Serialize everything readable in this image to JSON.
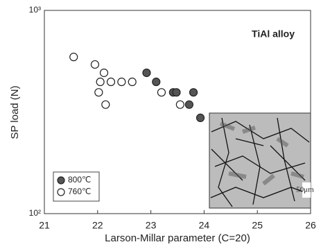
{
  "chart_data": {
    "type": "scatter",
    "xlabel": "Larson-Millar parameter (C=20)",
    "ylabel": "SP  load (N)",
    "annotations": [
      "TiAl alloy",
      "50μm"
    ],
    "xlim": [
      21,
      26
    ],
    "xticks": [
      21,
      22,
      23,
      24,
      25,
      26
    ],
    "ylim": [
      100,
      1000
    ],
    "yticks": [
      {
        "value": 100,
        "label": "10²"
      },
      {
        "value": 1000,
        "label": "10³"
      }
    ],
    "yscale": "log",
    "legend": "lower left",
    "series": [
      {
        "name": "800℃",
        "color": "#555555",
        "x": [
          22.92,
          23.1,
          23.42,
          23.48,
          23.72,
          23.8,
          23.93
        ],
        "values": [
          493,
          445,
          395,
          395,
          344,
          395,
          296
        ]
      },
      {
        "name": "760℃",
        "color": "#ffffff",
        "x": [
          21.55,
          21.95,
          22.12,
          22.05,
          22.25,
          22.45,
          22.65,
          22.02,
          23.2,
          22.15,
          23.55
        ],
        "values": [
          590,
          542,
          493,
          445,
          445,
          445,
          445,
          395,
          395,
          344,
          344
        ]
      }
    ]
  }
}
